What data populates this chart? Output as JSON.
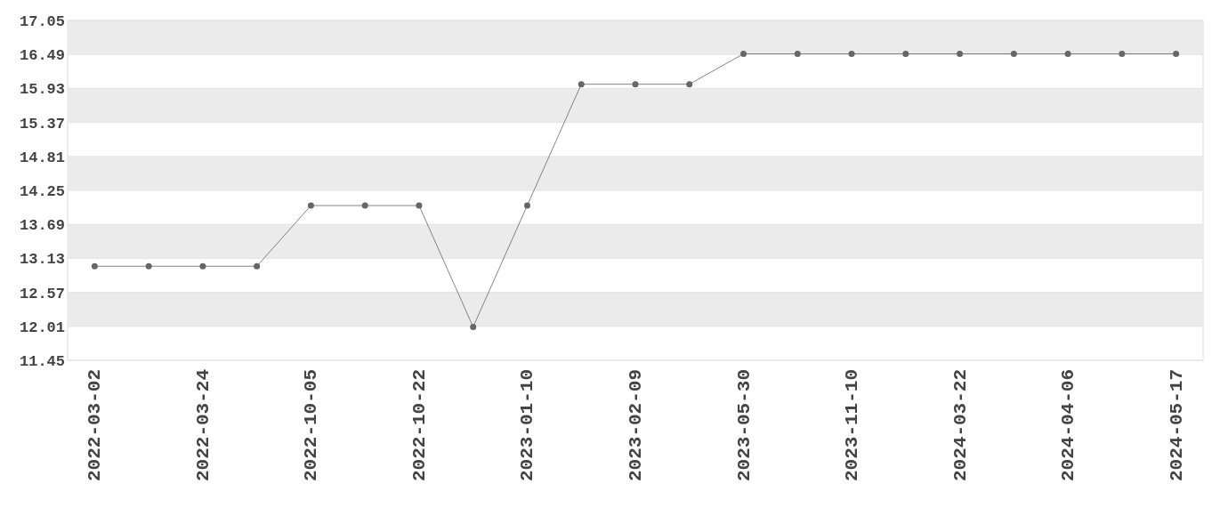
{
  "chart_data": {
    "type": "line",
    "categories": [
      "2022-03-02",
      null,
      "2022-03-24",
      null,
      "2022-10-05",
      null,
      "2022-10-22",
      null,
      "2023-01-10",
      null,
      "2023-02-09",
      null,
      "2023-05-30",
      null,
      "2023-11-10",
      null,
      "2024-03-22",
      null,
      "2024-04-06",
      null,
      "2024-05-17"
    ],
    "series": [
      {
        "color": "#666666",
        "values": [
          13,
          13,
          13,
          13,
          14,
          14,
          14,
          12,
          14,
          16,
          16,
          16,
          16.5,
          16.5,
          16.5,
          16.5,
          16.5,
          16.5,
          16.5,
          16.5,
          16.5
        ]
      }
    ],
    "ylim": [
      11.45,
      17.05
    ],
    "yticks": [
      11.45,
      12.01,
      12.57,
      13.13,
      13.69,
      14.25,
      14.81,
      15.37,
      15.93,
      16.49,
      17.05
    ],
    "grid": "y",
    "marker": "circle",
    "line_style": "solid"
  }
}
